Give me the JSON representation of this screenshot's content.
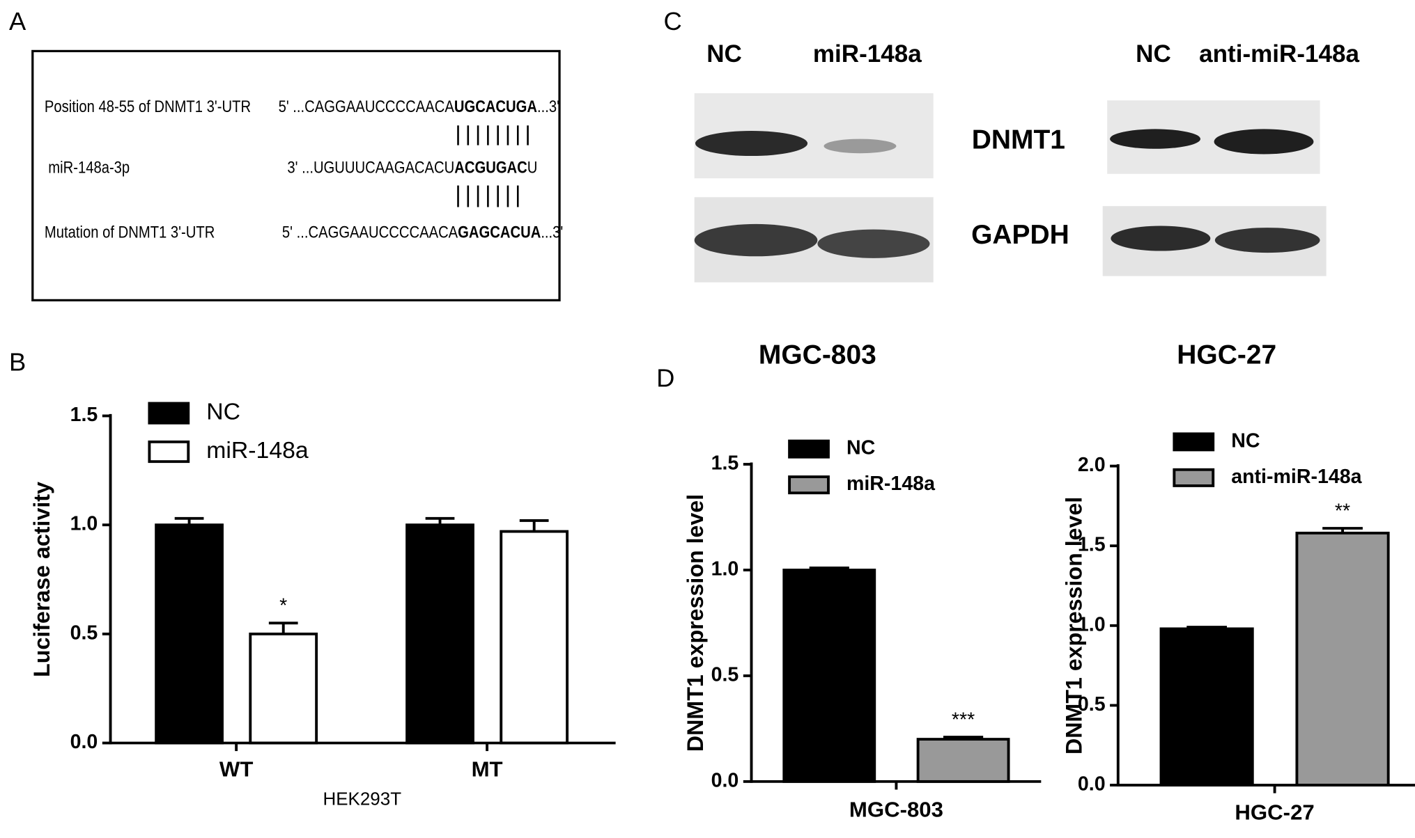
{
  "panel_labels": [
    "A",
    "B",
    "C",
    "D"
  ],
  "panel_a": {
    "rows": [
      {
        "name": "Position 48-55 of DNMT1 3'-UTR",
        "prefix": "5' ...CAGGAAUCCCCAACA",
        "bold": "UGCACUGA",
        "suffix": "...3'"
      },
      {
        "name": "miR-148a-3p",
        "prefix": "3'  ...UGUUUCAAGACACU",
        "bold": "ACGUGAC",
        "suffix": "U"
      },
      {
        "name": "Mutation of DNMT1 3'-UTR",
        "prefix": "5' ...CAGGAAUCCCCAACA",
        "bold": "GAGCACUA",
        "suffix": "...3'"
      }
    ]
  },
  "panel_c": {
    "left_lanes": [
      "NC",
      "miR-148a"
    ],
    "right_lanes": [
      "NC",
      "anti-miR-148a"
    ],
    "proteins": [
      "DNMT1",
      "GAPDH"
    ]
  },
  "chart_data": [
    {
      "type": "bar",
      "ylabel": "Luciferase activity",
      "xlabel": "HEK293T",
      "categories": [
        "WT",
        "MT"
      ],
      "series": [
        {
          "name": "NC",
          "color": "#000000",
          "values": [
            1.0,
            1.0
          ],
          "errors": [
            0.03,
            0.03
          ],
          "significance": [
            null,
            null
          ]
        },
        {
          "name": "miR-148a",
          "color": "#ffffff",
          "values": [
            0.5,
            0.97
          ],
          "errors": [
            0.05,
            0.05
          ],
          "significance": [
            "*",
            null
          ]
        }
      ],
      "ylim": [
        0,
        1.5
      ],
      "yticks": [
        {
          "value": 0,
          "label": "0.0"
        },
        {
          "value": 0.5,
          "label": "0.5"
        },
        {
          "value": 1.0,
          "label": "1.0"
        },
        {
          "value": 1.5,
          "label": "1.5"
        }
      ]
    },
    {
      "type": "bar",
      "title": "MGC-803",
      "ylabel": "DNMT1 expression level",
      "categories": [
        "MGC-803"
      ],
      "series": [
        {
          "name": "NC",
          "color": "#000000",
          "values": [
            1.0
          ],
          "errors": [
            0.01
          ],
          "significance": [
            null
          ]
        },
        {
          "name": "miR-148a",
          "color": "#999999",
          "values": [
            0.2
          ],
          "errors": [
            0.01
          ],
          "significance": [
            "***"
          ]
        }
      ],
      "ylim": [
        0,
        1.5
      ],
      "yticks": [
        {
          "value": 0,
          "label": "0.0"
        },
        {
          "value": 0.5,
          "label": "0.5"
        },
        {
          "value": 1.0,
          "label": "1.0"
        },
        {
          "value": 1.5,
          "label": "1.5"
        }
      ]
    },
    {
      "type": "bar",
      "title": "HGC-27",
      "ylabel": "DNMT1 expression level",
      "categories": [
        "HGC-27"
      ],
      "series": [
        {
          "name": "NC",
          "color": "#000000",
          "values": [
            0.98
          ],
          "errors": [
            0.01
          ],
          "significance": [
            null
          ]
        },
        {
          "name": "anti-miR-148a",
          "color": "#999999",
          "values": [
            1.58
          ],
          "errors": [
            0.03
          ],
          "significance": [
            "**"
          ]
        }
      ],
      "ylim": [
        0,
        2.0
      ],
      "yticks": [
        {
          "value": 0,
          "label": "0.0"
        },
        {
          "value": 0.5,
          "label": "0.5"
        },
        {
          "value": 1.0,
          "label": "1.0"
        },
        {
          "value": 1.5,
          "label": "1.5"
        },
        {
          "value": 2.0,
          "label": "2.0"
        }
      ]
    }
  ]
}
